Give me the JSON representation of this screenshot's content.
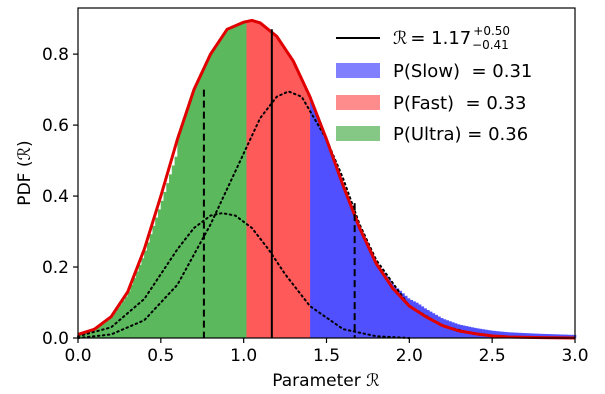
{
  "chart_data": {
    "type": "bar",
    "xlabel": "Parameter",
    "xlabel_symbol": "ℛ",
    "ylabel": "PDF (",
    "ylabel_symbol": "ℛ",
    "ylabel_close": ")",
    "xlim": [
      0.0,
      3.0
    ],
    "ylim": [
      0.0,
      0.93
    ],
    "x_ticks": [
      0.0,
      0.5,
      1.0,
      1.5,
      2.0,
      2.5,
      3.0
    ],
    "x_tick_labels": [
      "0.0",
      "0.5",
      "1.0",
      "1.5",
      "2.0",
      "2.5",
      "3.0"
    ],
    "y_ticks": [
      0.0,
      0.2,
      0.4,
      0.6,
      0.8
    ],
    "y_tick_labels": [
      "0.0",
      "0.2",
      "0.4",
      "0.6",
      "0.8"
    ],
    "grid": false,
    "legend_position": "top-right",
    "histogram": {
      "bin_width": 0.0167,
      "x_range": [
        0.0,
        3.0
      ],
      "regions": [
        {
          "name": "P(Ultra)",
          "x_range": [
            0.0,
            1.02
          ],
          "color": "#5cb85c"
        },
        {
          "name": "P(Fast)",
          "x_range": [
            1.02,
            1.41
          ],
          "color": "#ff5a5a"
        },
        {
          "name": "P(Slow)",
          "x_range": [
            1.41,
            3.0
          ],
          "color": "#5050ff"
        }
      ]
    },
    "total_curve": {
      "color": "#e00000",
      "points": [
        [
          0.0,
          0.01
        ],
        [
          0.1,
          0.025
        ],
        [
          0.2,
          0.06
        ],
        [
          0.3,
          0.13
        ],
        [
          0.4,
          0.25
        ],
        [
          0.5,
          0.4
        ],
        [
          0.6,
          0.56
        ],
        [
          0.7,
          0.7
        ],
        [
          0.8,
          0.8
        ],
        [
          0.9,
          0.87
        ],
        [
          1.0,
          0.89
        ],
        [
          1.05,
          0.895
        ],
        [
          1.1,
          0.888
        ],
        [
          1.2,
          0.85
        ],
        [
          1.3,
          0.78
        ],
        [
          1.4,
          0.68
        ],
        [
          1.5,
          0.56
        ],
        [
          1.6,
          0.43
        ],
        [
          1.7,
          0.31
        ],
        [
          1.8,
          0.21
        ],
        [
          1.9,
          0.14
        ],
        [
          2.0,
          0.09
        ],
        [
          2.1,
          0.06
        ],
        [
          2.2,
          0.035
        ],
        [
          2.3,
          0.02
        ],
        [
          2.4,
          0.012
        ],
        [
          2.5,
          0.006
        ],
        [
          2.6,
          0.003
        ],
        [
          2.8,
          0.001
        ],
        [
          3.0,
          0.0
        ]
      ]
    },
    "component_curves": [
      {
        "style": "dotted",
        "points": [
          [
            0.0,
            0.005
          ],
          [
            0.2,
            0.03
          ],
          [
            0.4,
            0.11
          ],
          [
            0.6,
            0.25
          ],
          [
            0.7,
            0.31
          ],
          [
            0.8,
            0.345
          ],
          [
            0.87,
            0.352
          ],
          [
            0.95,
            0.345
          ],
          [
            1.05,
            0.31
          ],
          [
            1.15,
            0.25
          ],
          [
            1.25,
            0.18
          ],
          [
            1.4,
            0.09
          ],
          [
            1.6,
            0.025
          ],
          [
            1.8,
            0.005
          ],
          [
            2.0,
            0.0
          ]
        ]
      },
      {
        "style": "dotted",
        "points": [
          [
            0.0,
            0.0
          ],
          [
            0.2,
            0.01
          ],
          [
            0.4,
            0.05
          ],
          [
            0.6,
            0.15
          ],
          [
            0.8,
            0.32
          ],
          [
            1.0,
            0.52
          ],
          [
            1.1,
            0.62
          ],
          [
            1.2,
            0.68
          ],
          [
            1.27,
            0.695
          ],
          [
            1.35,
            0.68
          ],
          [
            1.5,
            0.56
          ],
          [
            1.6,
            0.45
          ],
          [
            1.7,
            0.32
          ],
          [
            1.8,
            0.22
          ],
          [
            2.0,
            0.09
          ],
          [
            2.2,
            0.035
          ],
          [
            2.4,
            0.01
          ],
          [
            2.6,
            0.003
          ],
          [
            3.0,
            0.0
          ]
        ]
      }
    ],
    "vertical_lines": [
      {
        "x": 0.76,
        "style": "dashed",
        "top": 0.7
      },
      {
        "x": 1.17,
        "style": "solid",
        "top": 0.87
      },
      {
        "x": 1.67,
        "style": "dashed",
        "top": 0.38
      }
    ],
    "legend": [
      {
        "kind": "line",
        "symbol": "ℛ",
        "text": "= 1.17",
        "sup": "+0.50",
        "sub": "−0.41",
        "color": "#000000"
      },
      {
        "kind": "patch",
        "text": "P(Slow)  = 0.31",
        "color": "#8080ff"
      },
      {
        "kind": "patch",
        "text": "P(Fast)  = 0.33",
        "color": "#ff8c8c"
      },
      {
        "kind": "patch",
        "text": "P(Ultra) = 0.36",
        "color": "#85c785"
      }
    ]
  }
}
